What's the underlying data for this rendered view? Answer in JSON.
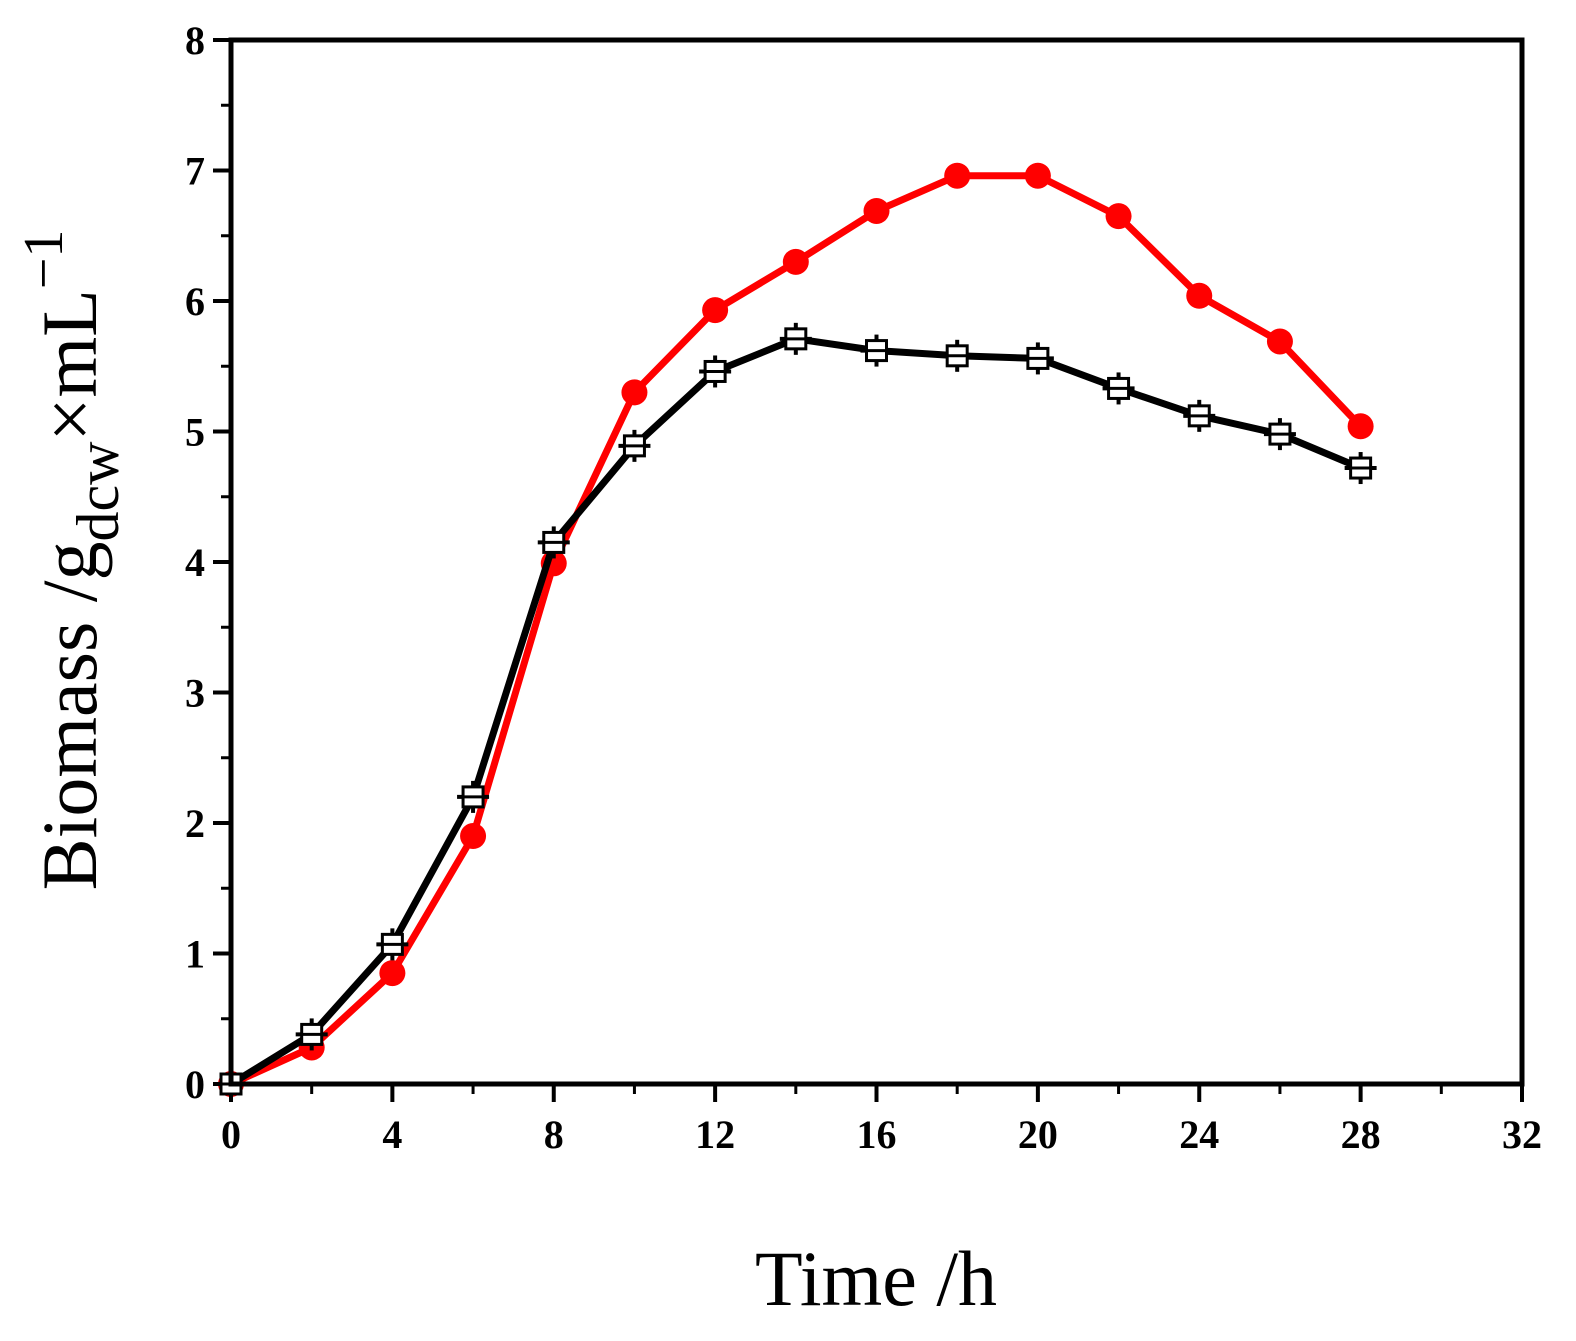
{
  "chart_data": {
    "type": "line",
    "title": "",
    "xlabel": "Time /h",
    "ylabel": {
      "main": "Biomass /g",
      "subscript": "dcw",
      "rest": "×mL",
      "superscript": "−1"
    },
    "xlim": [
      0,
      32
    ],
    "ylim": [
      0,
      8
    ],
    "xticks": [
      0,
      4,
      8,
      12,
      16,
      20,
      24,
      28,
      32
    ],
    "yticks": [
      0,
      1,
      2,
      3,
      4,
      5,
      6,
      7,
      8
    ],
    "grid": false,
    "legend": "none",
    "series": [
      {
        "name": "red series",
        "color": "#ff0000",
        "marker": "circle",
        "x": [
          0,
          2,
          4,
          6,
          8,
          10,
          12,
          14,
          16,
          18,
          20,
          22,
          24,
          26,
          28
        ],
        "values": [
          0,
          0.28,
          0.85,
          1.9,
          3.99,
          5.3,
          5.93,
          6.3,
          6.69,
          6.96,
          6.96,
          6.65,
          6.04,
          5.69,
          5.04
        ]
      },
      {
        "name": "black series",
        "color": "#000000",
        "marker": "square-cross",
        "x": [
          0,
          2,
          4,
          6,
          8,
          10,
          12,
          14,
          16,
          18,
          20,
          22,
          24,
          26,
          28
        ],
        "values": [
          0,
          0.38,
          1.07,
          2.2,
          4.15,
          4.89,
          5.46,
          5.71,
          5.62,
          5.58,
          5.56,
          5.33,
          5.12,
          4.98,
          4.72
        ]
      }
    ]
  }
}
